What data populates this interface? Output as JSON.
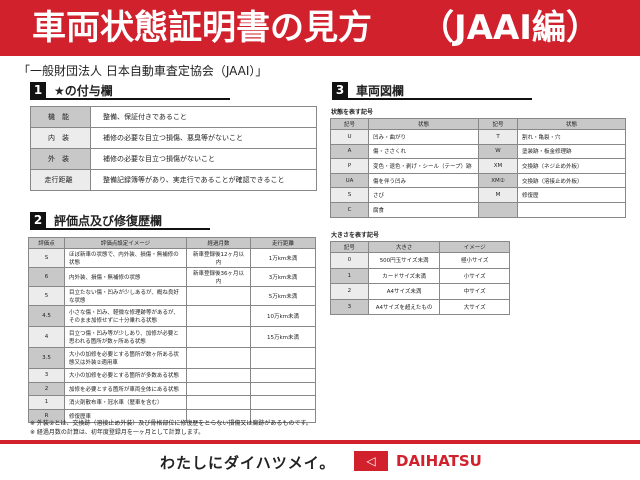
{
  "header": {
    "title": "車両状態証明書の見方",
    "subtitle": "（JAAI編）"
  },
  "organization": "「一般財団法人 日本自動車査定協会（JAAI）」",
  "section1": {
    "number": "1",
    "title": "★の付与欄",
    "rows": [
      {
        "key": "機　能",
        "value": "整備、保証付きであること"
      },
      {
        "key": "内　装",
        "value": "補修の必要な目立つ損傷、悪臭等がないこと"
      },
      {
        "key": "外　装",
        "value": "補修の必要な目立つ損傷がないこと"
      },
      {
        "key": "走行距離",
        "value": "整備記録簿等があり、実走行であることが確認できること"
      }
    ]
  },
  "section2": {
    "number": "2",
    "title": "評価点及び修復歴欄",
    "headers": [
      "評価点",
      "評価点設定イメージ",
      "経過月数",
      "走行距離"
    ],
    "rows": [
      [
        "S",
        "ほぼ新車の状態で、内外装、損傷・無補修の状態",
        "新車登録後12ヶ月以内",
        "1万km未満"
      ],
      [
        "6",
        "内外装、損傷・無補修の状態",
        "新車登録後36ヶ月以内",
        "3万km未満"
      ],
      [
        "5",
        "目立たない傷・凹みが少しあるが、概ね良好な状態",
        "",
        "5万km未満"
      ],
      [
        "4.5",
        "小さな傷・凹み、軽微な修理跡等があるが、そのまま加修せずに十分乗れる状態",
        "",
        "10万km未満"
      ],
      [
        "4",
        "目立つ傷・凹み等が少しあり、加修が必要と思われる箇所が数ヶ所ある状態",
        "",
        "15万km未満"
      ],
      [
        "3.5",
        "大小の加修を必要とする箇所が数ヶ所ある状態又は外装②適用車",
        "",
        ""
      ],
      [
        "3",
        "大小の加修を必要とする箇所が多数ある状態",
        "",
        ""
      ],
      [
        "2",
        "加修を必要とする箇所が車両全体にある状態",
        "",
        ""
      ],
      [
        "1",
        "消火剤散布車・冠水車（歴車を含む）",
        "",
        ""
      ],
      [
        "R",
        "修復歴車",
        "",
        ""
      ]
    ]
  },
  "section3": {
    "number": "3",
    "title": "車両図欄",
    "condition_caption": "状態を表す記号",
    "condition_headers": [
      "記号",
      "状態",
      "記号",
      "状態"
    ],
    "conditions": [
      [
        "U",
        "凹み・曲がり",
        "T",
        "割れ・亀裂・穴"
      ],
      [
        "A",
        "傷・ささくれ",
        "W",
        "塗装跡・板金修理跡"
      ],
      [
        "P",
        "変色・退色・剥げ・シール（テープ）跡",
        "XM",
        "交換跡（ネジ止め外板）"
      ],
      [
        "UA",
        "傷を伴う凹み",
        "XM②",
        "交換跡（溶接止め外板）"
      ],
      [
        "S",
        "さび",
        "M",
        "修復歴"
      ],
      [
        "C",
        "腐食",
        "",
        ""
      ]
    ],
    "size_caption": "大きさを表す記号",
    "size_headers": [
      "記号",
      "大きさ",
      "イメージ"
    ],
    "sizes": [
      [
        "0",
        "500円玉サイズ未満",
        "極小サイズ"
      ],
      [
        "1",
        "カードサイズ未満",
        "小サイズ"
      ],
      [
        "2",
        "A4サイズ未満",
        "中サイズ"
      ],
      [
        "3",
        "A4サイズを超えたもの",
        "大サイズ"
      ]
    ]
  },
  "notes": [
    "※ 外装②とは、交換跡（溶接止め外装）及び骨格部位に修復歴をとらない損傷又は腐跡があるものです。",
    "※ 経過月数の計算は、初年度登録月を一ヶ月として計算します。"
  ],
  "footer": {
    "slogan": "わたしにダイハツメイ。",
    "brand": "DAIHATSU",
    "brand_color": "#d0212d"
  }
}
